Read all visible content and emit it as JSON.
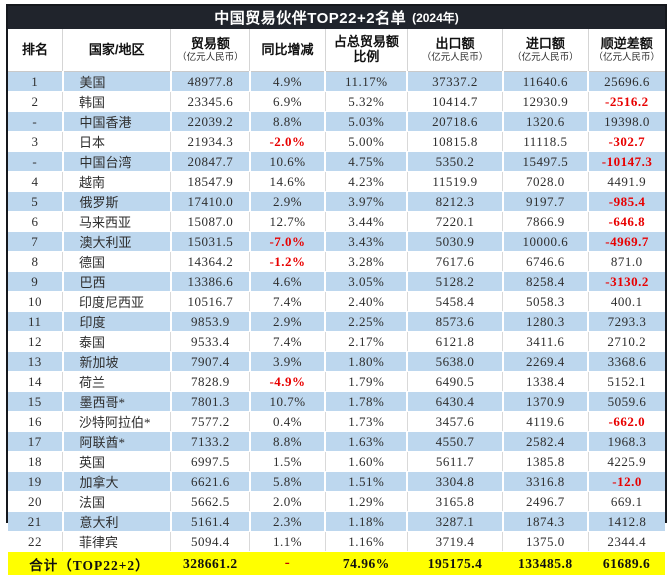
{
  "title": {
    "main": "中国贸易伙伴TOP22+2名单",
    "year": "(2024年)"
  },
  "columns": [
    {
      "key": "rank",
      "label": "排名",
      "sub": ""
    },
    {
      "key": "country",
      "label": "国家/地区",
      "sub": ""
    },
    {
      "key": "trade",
      "label": "贸易额",
      "sub": "（亿元人民币）"
    },
    {
      "key": "yoy",
      "label": "同比增减",
      "sub": ""
    },
    {
      "key": "share",
      "label": "占总贸易额",
      "sub": "比例"
    },
    {
      "key": "export",
      "label": "出口额",
      "sub": "（亿元人民币）"
    },
    {
      "key": "import",
      "label": "进口额",
      "sub": "（亿元人民币）"
    },
    {
      "key": "balance",
      "label": "顺逆差额",
      "sub": "（亿元人民币）"
    }
  ],
  "rows": [
    {
      "rank": "1",
      "country": "美国",
      "trade": "48977.8",
      "yoy": "4.9%",
      "share": "11.17%",
      "export": "37337.2",
      "import": "11640.6",
      "balance": "25696.6"
    },
    {
      "rank": "2",
      "country": "韩国",
      "trade": "23345.6",
      "yoy": "6.9%",
      "share": "5.32%",
      "export": "10414.7",
      "import": "12930.9",
      "balance": "-2516.2"
    },
    {
      "rank": "-",
      "country": "中国香港",
      "trade": "22039.2",
      "yoy": "8.8%",
      "share": "5.03%",
      "export": "20718.6",
      "import": "1320.6",
      "balance": "19398.0"
    },
    {
      "rank": "3",
      "country": "日本",
      "trade": "21934.3",
      "yoy": "-2.0%",
      "share": "5.00%",
      "export": "10815.8",
      "import": "11118.5",
      "balance": "-302.7"
    },
    {
      "rank": "-",
      "country": "中国台湾",
      "trade": "20847.7",
      "yoy": "10.6%",
      "share": "4.75%",
      "export": "5350.2",
      "import": "15497.5",
      "balance": "-10147.3"
    },
    {
      "rank": "4",
      "country": "越南",
      "trade": "18547.9",
      "yoy": "14.6%",
      "share": "4.23%",
      "export": "11519.9",
      "import": "7028.0",
      "balance": "4491.9"
    },
    {
      "rank": "5",
      "country": "俄罗斯",
      "trade": "17410.0",
      "yoy": "2.9%",
      "share": "3.97%",
      "export": "8212.3",
      "import": "9197.7",
      "balance": "-985.4"
    },
    {
      "rank": "6",
      "country": "马来西亚",
      "trade": "15087.0",
      "yoy": "12.7%",
      "share": "3.44%",
      "export": "7220.1",
      "import": "7866.9",
      "balance": "-646.8"
    },
    {
      "rank": "7",
      "country": "澳大利亚",
      "trade": "15031.5",
      "yoy": "-7.0%",
      "share": "3.43%",
      "export": "5030.9",
      "import": "10000.6",
      "balance": "-4969.7"
    },
    {
      "rank": "8",
      "country": "德国",
      "trade": "14364.2",
      "yoy": "-1.2%",
      "share": "3.28%",
      "export": "7617.6",
      "import": "6746.6",
      "balance": "871.0"
    },
    {
      "rank": "9",
      "country": "巴西",
      "trade": "13386.6",
      "yoy": "4.6%",
      "share": "3.05%",
      "export": "5128.2",
      "import": "8258.4",
      "balance": "-3130.2"
    },
    {
      "rank": "10",
      "country": "印度尼西亚",
      "trade": "10516.7",
      "yoy": "7.4%",
      "share": "2.40%",
      "export": "5458.4",
      "import": "5058.3",
      "balance": "400.1"
    },
    {
      "rank": "11",
      "country": "印度",
      "trade": "9853.9",
      "yoy": "2.9%",
      "share": "2.25%",
      "export": "8573.6",
      "import": "1280.3",
      "balance": "7293.3"
    },
    {
      "rank": "12",
      "country": "泰国",
      "trade": "9533.4",
      "yoy": "7.4%",
      "share": "2.17%",
      "export": "6121.8",
      "import": "3411.6",
      "balance": "2710.2"
    },
    {
      "rank": "13",
      "country": "新加坡",
      "trade": "7907.4",
      "yoy": "3.9%",
      "share": "1.80%",
      "export": "5638.0",
      "import": "2269.4",
      "balance": "3368.6"
    },
    {
      "rank": "14",
      "country": "荷兰",
      "trade": "7828.9",
      "yoy": "-4.9%",
      "share": "1.79%",
      "export": "6490.5",
      "import": "1338.4",
      "balance": "5152.1"
    },
    {
      "rank": "15",
      "country": "墨西哥*",
      "trade": "7801.3",
      "yoy": "10.7%",
      "share": "1.78%",
      "export": "6430.4",
      "import": "1370.9",
      "balance": "5059.6"
    },
    {
      "rank": "16",
      "country": "沙特阿拉伯*",
      "trade": "7577.2",
      "yoy": "0.4%",
      "share": "1.73%",
      "export": "3457.6",
      "import": "4119.6",
      "balance": "-662.0"
    },
    {
      "rank": "17",
      "country": "阿联酋*",
      "trade": "7133.2",
      "yoy": "8.8%",
      "share": "1.63%",
      "export": "4550.7",
      "import": "2582.4",
      "balance": "1968.3"
    },
    {
      "rank": "18",
      "country": "英国",
      "trade": "6997.5",
      "yoy": "1.5%",
      "share": "1.60%",
      "export": "5611.7",
      "import": "1385.8",
      "balance": "4225.9"
    },
    {
      "rank": "19",
      "country": "加拿大",
      "trade": "6621.6",
      "yoy": "5.8%",
      "share": "1.51%",
      "export": "3304.8",
      "import": "3316.8",
      "balance": "-12.0"
    },
    {
      "rank": "20",
      "country": "法国",
      "trade": "5662.5",
      "yoy": "2.0%",
      "share": "1.29%",
      "export": "3165.8",
      "import": "2496.7",
      "balance": "669.1"
    },
    {
      "rank": "21",
      "country": "意大利",
      "trade": "5161.4",
      "yoy": "2.3%",
      "share": "1.18%",
      "export": "3287.1",
      "import": "1874.3",
      "balance": "1412.8"
    },
    {
      "rank": "22",
      "country": "菲律宾",
      "trade": "5094.4",
      "yoy": "1.1%",
      "share": "1.16%",
      "export": "3719.4",
      "import": "1375.0",
      "balance": "2344.4"
    }
  ],
  "total": {
    "label": "合计（TOP22+2）",
    "trade": "328661.2",
    "yoy": "-",
    "share": "74.96%",
    "export": "195175.4",
    "import": "133485.8",
    "balance": "61689.6"
  },
  "colors": {
    "stripe_blue": "#bdd7ee",
    "title_bg": "#20242c",
    "negative_red": "#e80000",
    "total_bg": "#ffff00",
    "total_dash_red": "#c00000"
  }
}
